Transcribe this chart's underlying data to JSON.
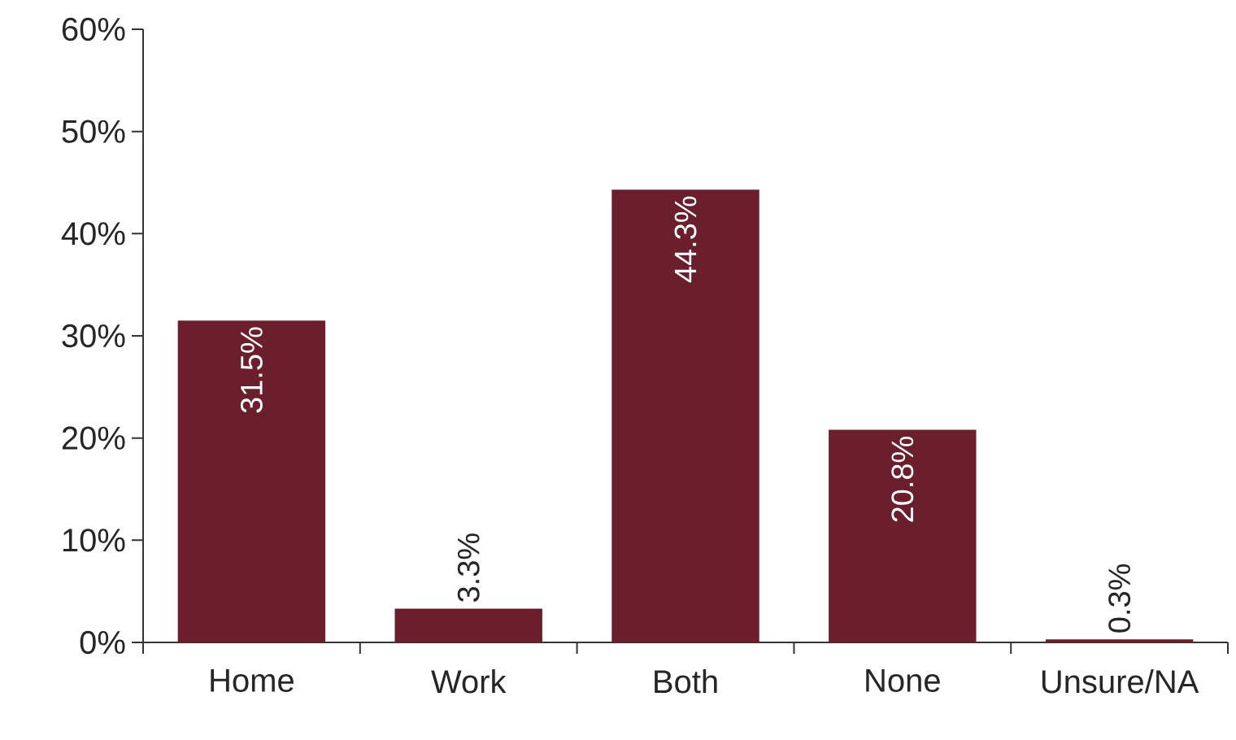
{
  "chart_data": {
    "type": "bar",
    "categories": [
      "Home",
      "Work",
      "Both",
      "None",
      "Unsure/NA"
    ],
    "values": [
      31.5,
      3.3,
      44.3,
      20.8,
      0.3
    ],
    "value_labels": [
      "31.5%",
      "3.3%",
      "44.3%",
      "20.8%",
      "0.3%"
    ],
    "color": "#6b1f2d",
    "ylim": [
      0,
      60
    ],
    "yticks": [
      {
        "value": 0,
        "label": "0%"
      },
      {
        "value": 10,
        "label": "10%"
      },
      {
        "value": 20,
        "label": "20%"
      },
      {
        "value": 30,
        "label": "30%"
      },
      {
        "value": 40,
        "label": "40%"
      },
      {
        "value": 50,
        "label": "50%"
      },
      {
        "value": 60,
        "label": "60%"
      }
    ],
    "grid": false
  }
}
